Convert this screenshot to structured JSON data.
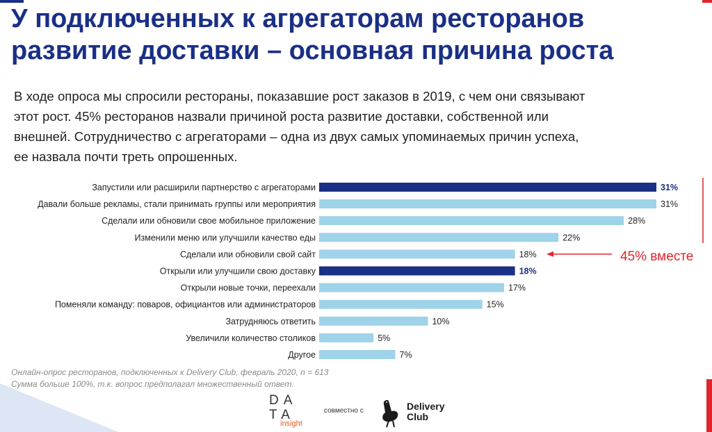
{
  "title_lines": [
    "У подключенных к агрегаторам ресторанов",
    "развитие доставки – основная причина роста"
  ],
  "subtitle_lines": [
    "В ходе опроса мы спросили рестораны, показавшие рост заказов в 2019, с чем они связывают",
    "этот рост. 45% ресторанов назвали причиной роста развитие доставки, собственной или",
    "внешней. Сотрудничество с агрегаторами – одна из двух самых упоминаемых причин успеха,",
    "ее назвала почти треть опрошенных."
  ],
  "annotation": "45% вместе",
  "source_lines": [
    "Онлайн-опрос ресторанов, подключенных к Delivery Club, февраль 2020, n = 613",
    "Сумма больше 100%, т.к. вопрос предполагал множественный ответ."
  ],
  "footer": {
    "data_logo_line1": "DA",
    "data_logo_line2": "TA",
    "data_logo_sub": "insight",
    "together": "совместно с",
    "delivery_line1": "Delivery",
    "delivery_line2": "Club"
  },
  "colors": {
    "highlight_bar": "#1a2f86",
    "normal_bar": "#9fd3e9",
    "accent_red": "#e3242b",
    "title": "#1a2f86"
  },
  "chart_data": {
    "type": "bar",
    "orientation": "horizontal",
    "categories": [
      "Запустили или расширили партнерство с агрегаторами",
      "Давали больше рекламы, стали принимать группы или мероприятия",
      "Сделали или обновили свое мобильное приложение",
      "Изменили меню или улучшили качество еды",
      "Сделали или обновили свой сайт",
      "Открыли или улучшили свою доставку",
      "Открыли новые точки, переехали",
      "Поменяли команду: поваров, официантов или администраторов",
      "Затрудняюсь ответить",
      "Увеличили количество столиков",
      "Другое"
    ],
    "values": [
      31,
      31,
      28,
      22,
      18,
      18,
      17,
      15,
      10,
      5,
      7
    ],
    "value_labels": [
      "31%",
      "31%",
      "28%",
      "22%",
      "18%",
      "18%",
      "17%",
      "15%",
      "10%",
      "5%",
      "7%"
    ],
    "highlighted": [
      true,
      false,
      false,
      false,
      false,
      true,
      false,
      false,
      false,
      false,
      false
    ],
    "unit": "%",
    "xlim": [
      0,
      31
    ],
    "grid": false,
    "legend": "none"
  }
}
